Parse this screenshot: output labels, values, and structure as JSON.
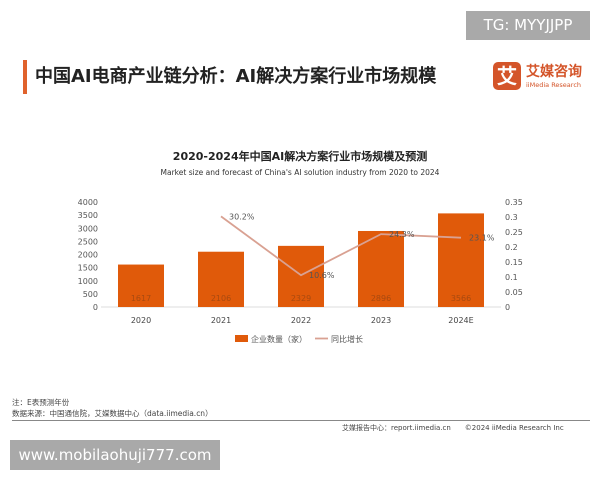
{
  "watermark_top": "TG: MYYJJPP",
  "header": {
    "title": "中国AI电商产业链分析：AI解决方案行业市场规模",
    "logo_glyph": "艾",
    "logo_cn": "艾媒咨询",
    "logo_en": "iiMedia Research"
  },
  "colors": {
    "accent": "#e0622c",
    "bar": "#e05a0a",
    "line": "#d9a192"
  },
  "chart_data": {
    "type": "bar+line",
    "title": "2020-2024年中国AI解决方案行业市场规模及预测",
    "subtitle": "Market size and forecast of China's AI solution industry from 2020 to 2024",
    "categories": [
      "2020",
      "2021",
      "2022",
      "2023",
      "2024E"
    ],
    "series": [
      {
        "name": "企业数量（家）",
        "type": "bar",
        "axis": "left",
        "values": [
          1617,
          2106,
          2329,
          2896,
          3566
        ],
        "labels": [
          "1617",
          "2106",
          "2329",
          "2896",
          "3566"
        ]
      },
      {
        "name": "同比增长",
        "type": "line",
        "axis": "right",
        "values": [
          null,
          0.302,
          0.106,
          0.243,
          0.231
        ],
        "labels": [
          "",
          "30.2%",
          "10.6%",
          "24.3%",
          "23.1%"
        ]
      }
    ],
    "ylim_left": [
      0,
      4000
    ],
    "yticks_left": [
      "0",
      "500",
      "1000",
      "1500",
      "2000",
      "2500",
      "3000",
      "3500",
      "4000"
    ],
    "ylim_right": [
      0,
      0.35
    ],
    "yticks_right": [
      "0",
      "0.05",
      "0.1",
      "0.15",
      "0.2",
      "0.25",
      "0.3",
      "0.35"
    ],
    "grid": false,
    "legend": "bottom"
  },
  "notes": [
    "注：E表预测年份",
    "数据来源：中国通信院，艾媒数据中心（data.iimedia.cn）"
  ],
  "footer": "艾媒报告中心：report.iimedia.cn　　©2024  iiMedia Research  Inc",
  "watermark_bottom": "www.mobilaohuji777.com"
}
